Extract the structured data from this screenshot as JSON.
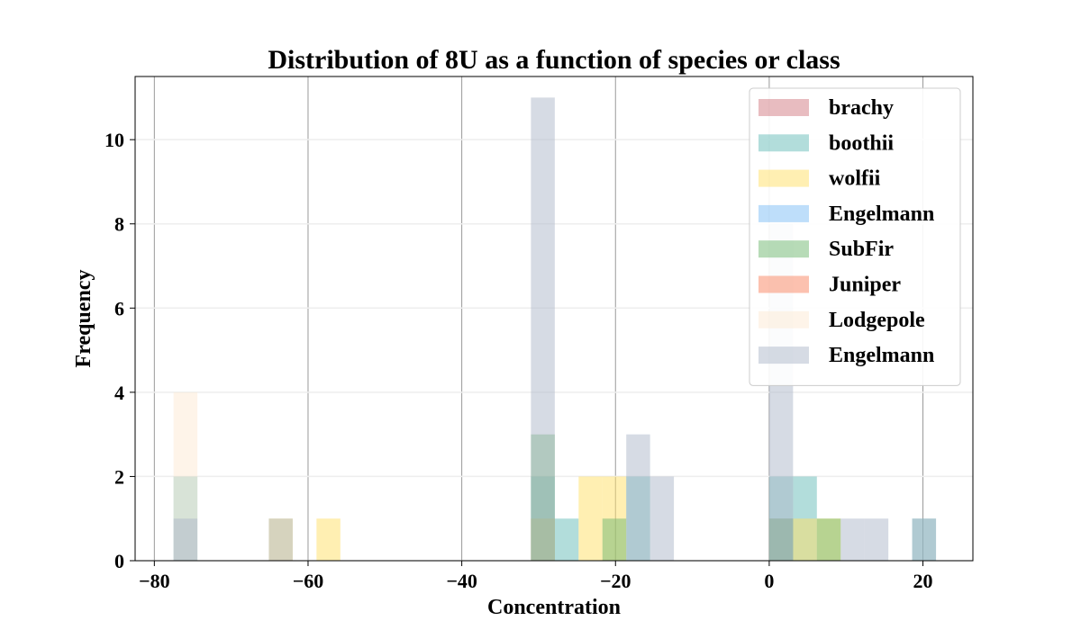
{
  "chart_data": {
    "type": "bar",
    "subtype": "histogram-overlay",
    "title": "Distribution of 8U as a function of species or class",
    "xlabel": "Concentration",
    "ylabel": "Frequency",
    "xlim": [
      -82.5,
      26.5
    ],
    "ylim": [
      0,
      11.5
    ],
    "xticks": [
      -80,
      -60,
      -40,
      -20,
      0,
      20
    ],
    "yticks": [
      0,
      2,
      4,
      6,
      8,
      10
    ],
    "xtick_labels": [
      "−80",
      "−60",
      "−40",
      "−20",
      "0",
      "20"
    ],
    "ytick_labels": [
      "0",
      "2",
      "4",
      "6",
      "8",
      "10"
    ],
    "x_grid": true,
    "y_grid": true,
    "legend_position": "top-right",
    "bin_width": 3.1,
    "series": [
      {
        "name": "brachy",
        "color": "#cd6b73",
        "opacity": 0.45,
        "bins": [
          {
            "x": -31,
            "h": 1
          },
          {
            "x": 0,
            "h": 1
          }
        ]
      },
      {
        "name": "boothii",
        "color": "#55b4b0",
        "opacity": 0.45,
        "bins": [
          {
            "x": -77.5,
            "h": 2
          },
          {
            "x": -31,
            "h": 2
          },
          {
            "x": -27.9,
            "h": 1
          },
          {
            "x": -18.6,
            "h": 2
          },
          {
            "x": 0,
            "h": 2
          },
          {
            "x": 3.1,
            "h": 2
          },
          {
            "x": 18.6,
            "h": 1
          }
        ]
      },
      {
        "name": "wolfii",
        "color": "#ffe066",
        "opacity": 0.5,
        "bins": [
          {
            "x": -65.1,
            "h": 1
          },
          {
            "x": -58.9,
            "h": 1
          },
          {
            "x": -31,
            "h": 1
          },
          {
            "x": -24.8,
            "h": 2
          },
          {
            "x": -21.7,
            "h": 2
          },
          {
            "x": 3.1,
            "h": 1
          },
          {
            "x": 6.2,
            "h": 1
          }
        ]
      },
      {
        "name": "Engelmann",
        "color": "#6fb5f5",
        "opacity": 0.45,
        "bins": []
      },
      {
        "name": "SubFir",
        "color": "#70b870",
        "opacity": 0.5,
        "bins": [
          {
            "x": -31,
            "h": 3
          },
          {
            "x": -21.7,
            "h": 1
          },
          {
            "x": 0,
            "h": 1
          },
          {
            "x": 6.2,
            "h": 1
          }
        ]
      },
      {
        "name": "Juniper",
        "color": "#f98e6e",
        "opacity": 0.55,
        "bins": []
      },
      {
        "name": "Lodgepole",
        "color": "#fde9d4",
        "opacity": 0.5,
        "bins": [
          {
            "x": -77.5,
            "h": 4
          }
        ]
      },
      {
        "name": "Engelmann",
        "color": "#aeb8c9",
        "opacity": 0.5,
        "bins": [
          {
            "x": -77.5,
            "h": 1
          },
          {
            "x": -65.1,
            "h": 1
          },
          {
            "x": -31,
            "h": 11
          },
          {
            "x": -18.6,
            "h": 3
          },
          {
            "x": -15.5,
            "h": 2
          },
          {
            "x": 0,
            "h": 8
          },
          {
            "x": 9.3,
            "h": 1
          },
          {
            "x": 12.4,
            "h": 1
          },
          {
            "x": 18.6,
            "h": 1
          }
        ]
      }
    ]
  }
}
